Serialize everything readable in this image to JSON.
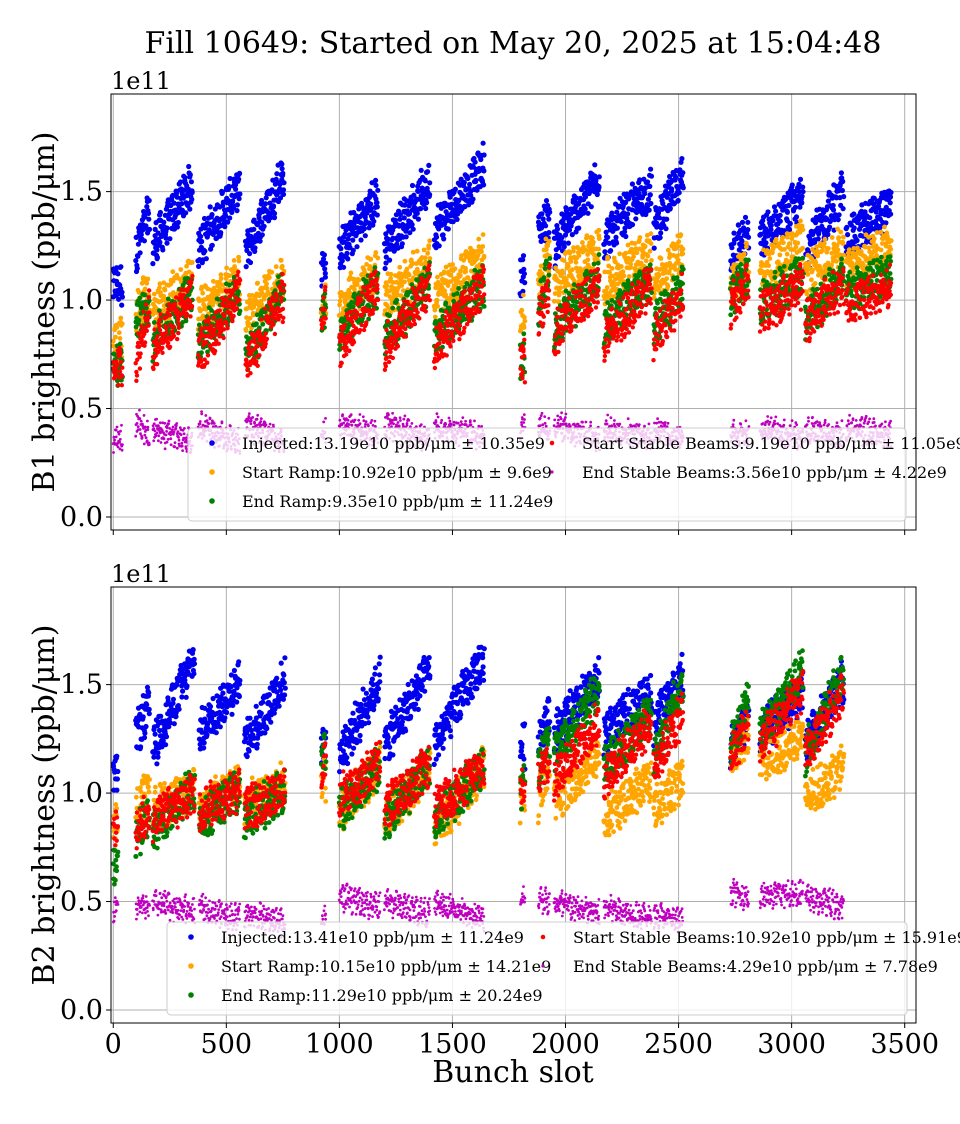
{
  "title": "Fill 10649: Started on May 20, 2025 at 15:04:48",
  "xlabel": "Bunch slot",
  "xticks": [
    "0",
    "500",
    "1000",
    "1500",
    "2000",
    "2500",
    "3000",
    "3500"
  ],
  "yticks": [
    "0.0",
    "0.5",
    "1.0",
    "1.5"
  ],
  "offset_label": "1e11",
  "colors": {
    "injected": "#0000ee",
    "start_ramp": "#ffa500",
    "end_ramp": "#008000",
    "start_stable": "#ff0000",
    "end_stable": "#c000c0",
    "grid": "#b0b0b0"
  },
  "chart_data": [
    {
      "type": "scatter",
      "name": "B1",
      "ylabel": "B1 brightness (ppb/μm)",
      "xlim": [
        -10,
        3550
      ],
      "ylim": [
        -0.06,
        1.95
      ],
      "y_multiplier": "1e11",
      "grid": true,
      "legend_position": "lower-right",
      "trains": [
        {
          "x": [
            0,
            40
          ],
          "inj": [
            1.05,
            1.05
          ],
          "sr": [
            0.78,
            0.8
          ],
          "er": [
            0.68,
            0.7
          ],
          "ssb": [
            0.65,
            0.7
          ],
          "esb": [
            0.33,
            0.33
          ]
        },
        {
          "x": [
            100,
            160
          ],
          "inj": [
            1.2,
            1.38
          ],
          "sr": [
            0.92,
            1.02
          ],
          "er": [
            0.88,
            0.95
          ],
          "ssb": [
            0.68,
            0.98
          ],
          "esb": [
            0.42,
            0.35
          ]
        },
        {
          "x": [
            175,
            350
          ],
          "inj": [
            1.22,
            1.52
          ],
          "sr": [
            0.92,
            1.08
          ],
          "er": [
            0.8,
            1.02
          ],
          "ssb": [
            0.75,
            1.0
          ],
          "esb": [
            0.38,
            0.32
          ]
        },
        {
          "x": [
            375,
            560
          ],
          "inj": [
            1.22,
            1.5
          ],
          "sr": [
            0.92,
            1.08
          ],
          "er": [
            0.78,
            1.02
          ],
          "ssb": [
            0.72,
            1.02
          ],
          "esb": [
            0.4,
            0.32
          ]
        },
        {
          "x": [
            585,
            755
          ],
          "inj": [
            1.2,
            1.56
          ],
          "sr": [
            0.9,
            1.08
          ],
          "er": [
            0.72,
            1.02
          ],
          "ssb": [
            0.68,
            1.0
          ],
          "esb": [
            0.4,
            0.32
          ]
        },
        {
          "x": [
            920,
            940
          ],
          "inj": [
            1.12,
            1.12
          ],
          "sr": [
            0.95,
            0.95
          ],
          "er": [
            0.92,
            0.92
          ],
          "ssb": [
            0.93,
            0.93
          ],
          "esb": [
            0.38,
            0.38
          ]
        },
        {
          "x": [
            1000,
            1170
          ],
          "inj": [
            1.2,
            1.45
          ],
          "sr": [
            0.95,
            1.12
          ],
          "er": [
            0.82,
            1.05
          ],
          "ssb": [
            0.75,
            1.05
          ],
          "esb": [
            0.4,
            0.36
          ]
        },
        {
          "x": [
            1200,
            1400
          ],
          "inj": [
            1.22,
            1.52
          ],
          "sr": [
            0.98,
            1.15
          ],
          "er": [
            0.82,
            1.05
          ],
          "ssb": [
            0.75,
            1.05
          ],
          "esb": [
            0.4,
            0.34
          ]
        },
        {
          "x": [
            1420,
            1640
          ],
          "inj": [
            1.3,
            1.6
          ],
          "sr": [
            0.98,
            1.18
          ],
          "er": [
            0.8,
            1.05
          ],
          "ssb": [
            0.75,
            1.05
          ],
          "esb": [
            0.4,
            0.34
          ]
        },
        {
          "x": [
            1800,
            1820
          ],
          "inj": [
            1.1,
            1.1
          ],
          "sr": [
            0.9,
            0.9
          ],
          "er": [
            0.72,
            0.72
          ],
          "ssb": [
            0.7,
            0.7
          ],
          "esb": [
            0.4,
            0.4
          ]
        },
        {
          "x": [
            1880,
            1930
          ],
          "inj": [
            1.3,
            1.36
          ],
          "sr": [
            1.05,
            1.2
          ],
          "er": [
            0.95,
            1.1
          ],
          "ssb": [
            0.9,
            1.05
          ],
          "esb": [
            0.4,
            0.38
          ]
        },
        {
          "x": [
            1950,
            2150
          ],
          "inj": [
            1.22,
            1.55
          ],
          "sr": [
            1.05,
            1.22
          ],
          "er": [
            0.85,
            1.08
          ],
          "ssb": [
            0.82,
            1.05
          ],
          "esb": [
            0.4,
            0.34
          ]
        },
        {
          "x": [
            2170,
            2380
          ],
          "inj": [
            1.25,
            1.5
          ],
          "sr": [
            1.05,
            1.2
          ],
          "er": [
            0.85,
            1.08
          ],
          "ssb": [
            0.8,
            1.05
          ],
          "esb": [
            0.38,
            0.34
          ]
        },
        {
          "x": [
            2390,
            2520
          ],
          "inj": [
            1.3,
            1.55
          ],
          "sr": [
            1.05,
            1.2
          ],
          "er": [
            0.85,
            1.05
          ],
          "ssb": [
            0.8,
            1.0
          ],
          "esb": [
            0.38,
            0.34
          ]
        },
        {
          "x": [
            2730,
            2810
          ],
          "inj": [
            1.2,
            1.28
          ],
          "sr": [
            1.05,
            1.15
          ],
          "er": [
            1.0,
            1.1
          ],
          "ssb": [
            0.95,
            1.05
          ],
          "esb": [
            0.38,
            0.36
          ]
        },
        {
          "x": [
            2860,
            3050
          ],
          "inj": [
            1.25,
            1.45
          ],
          "sr": [
            1.1,
            1.25
          ],
          "er": [
            0.95,
            1.1
          ],
          "ssb": [
            0.92,
            1.05
          ],
          "esb": [
            0.38,
            0.35
          ]
        },
        {
          "x": [
            3060,
            3230
          ],
          "inj": [
            1.2,
            1.48
          ],
          "sr": [
            1.08,
            1.22
          ],
          "er": [
            0.9,
            1.08
          ],
          "ssb": [
            0.88,
            1.05
          ],
          "esb": [
            0.38,
            0.35
          ]
        },
        {
          "x": [
            3240,
            3440
          ],
          "inj": [
            1.25,
            1.42
          ],
          "sr": [
            1.1,
            1.25
          ],
          "er": [
            1.0,
            1.1
          ],
          "ssb": [
            0.95,
            1.05
          ],
          "esb": [
            0.38,
            0.36
          ]
        }
      ],
      "legend": [
        {
          "key": "injected",
          "label": "Injected:13.19e10 ppb/μm ± 10.35e9"
        },
        {
          "key": "start_ramp",
          "label": "Start Ramp:10.92e10 ppb/μm ± 9.6e9"
        },
        {
          "key": "end_ramp",
          "label": "End Ramp:9.35e10 ppb/μm ± 11.24e9"
        },
        {
          "key": "start_stable",
          "label": "Start Stable Beams:9.19e10 ppb/μm ± 11.05e9"
        },
        {
          "key": "end_stable",
          "label": "End Stable Beams:3.56e10 ppb/μm ± 4.22e9"
        }
      ]
    },
    {
      "type": "scatter",
      "name": "B2",
      "ylabel": "B2 brightness (ppb/μm)",
      "xlim": [
        -10,
        3550
      ],
      "ylim": [
        -0.06,
        1.95
      ],
      "y_multiplier": "1e11",
      "grid": true,
      "legend_position": "lower-right",
      "trains": [
        {
          "x": [
            0,
            20
          ],
          "inj": [
            1.05,
            1.05
          ],
          "sr": [
            0.85,
            0.85
          ],
          "er": [
            0.65,
            0.65
          ],
          "ssb": [
            0.8,
            0.8
          ],
          "esb": [
            0.45,
            0.45
          ]
        },
        {
          "x": [
            100,
            160
          ],
          "inj": [
            1.25,
            1.38
          ],
          "sr": [
            0.9,
            1.0
          ],
          "er": [
            0.78,
            0.85
          ],
          "ssb": [
            0.8,
            0.9
          ],
          "esb": [
            0.45,
            0.45
          ]
        },
        {
          "x": [
            175,
            360
          ],
          "inj": [
            1.18,
            1.6
          ],
          "sr": [
            0.9,
            1.0
          ],
          "er": [
            0.8,
            1.0
          ],
          "ssb": [
            0.85,
            0.98
          ],
          "esb": [
            0.47,
            0.43
          ]
        },
        {
          "x": [
            380,
            560
          ],
          "inj": [
            1.25,
            1.5
          ],
          "sr": [
            0.92,
            1.02
          ],
          "er": [
            0.85,
            1.0
          ],
          "ssb": [
            0.9,
            1.0
          ],
          "esb": [
            0.45,
            0.4
          ]
        },
        {
          "x": [
            580,
            760
          ],
          "inj": [
            1.2,
            1.5
          ],
          "sr": [
            0.92,
            1.02
          ],
          "er": [
            0.85,
            1.0
          ],
          "ssb": [
            0.9,
            1.0
          ],
          "esb": [
            0.42,
            0.38
          ]
        },
        {
          "x": [
            920,
            940
          ],
          "inj": [
            1.2,
            1.2
          ],
          "sr": [
            1.05,
            1.05
          ],
          "er": [
            1.15,
            1.15
          ],
          "ssb": [
            1.1,
            1.1
          ],
          "esb": [
            0.4,
            0.4
          ]
        },
        {
          "x": [
            1000,
            1180
          ],
          "inj": [
            1.15,
            1.5
          ],
          "sr": [
            0.9,
            1.1
          ],
          "er": [
            0.9,
            1.1
          ],
          "ssb": [
            0.95,
            1.12
          ],
          "esb": [
            0.5,
            0.45
          ]
        },
        {
          "x": [
            1200,
            1400
          ],
          "inj": [
            1.2,
            1.55
          ],
          "sr": [
            0.85,
            1.1
          ],
          "er": [
            0.85,
            1.1
          ],
          "ssb": [
            0.9,
            1.1
          ],
          "esb": [
            0.48,
            0.42
          ]
        },
        {
          "x": [
            1420,
            1640
          ],
          "inj": [
            1.2,
            1.6
          ],
          "sr": [
            0.8,
            1.1
          ],
          "er": [
            0.85,
            1.1
          ],
          "ssb": [
            0.9,
            1.1
          ],
          "esb": [
            0.47,
            0.4
          ]
        },
        {
          "x": [
            1800,
            1820
          ],
          "inj": [
            1.2,
            1.2
          ],
          "sr": [
            0.95,
            0.95
          ],
          "er": [
            1.0,
            1.0
          ],
          "ssb": [
            1.0,
            1.0
          ],
          "esb": [
            0.5,
            0.5
          ]
        },
        {
          "x": [
            1880,
            1930
          ],
          "inj": [
            1.25,
            1.35
          ],
          "sr": [
            0.95,
            1.1
          ],
          "er": [
            1.1,
            1.2
          ],
          "ssb": [
            1.05,
            1.15
          ],
          "esb": [
            0.5,
            0.47
          ]
        },
        {
          "x": [
            1950,
            2150
          ],
          "inj": [
            1.25,
            1.5
          ],
          "sr": [
            0.95,
            1.15
          ],
          "er": [
            1.15,
            1.45
          ],
          "ssb": [
            1.05,
            1.3
          ],
          "esb": [
            0.47,
            0.42
          ]
        },
        {
          "x": [
            2170,
            2380
          ],
          "inj": [
            1.25,
            1.45
          ],
          "sr": [
            0.85,
            1.05
          ],
          "er": [
            1.1,
            1.35
          ],
          "ssb": [
            1.05,
            1.3
          ],
          "esb": [
            0.45,
            0.4
          ]
        },
        {
          "x": [
            2390,
            2520
          ],
          "inj": [
            1.3,
            1.52
          ],
          "sr": [
            0.9,
            1.05
          ],
          "er": [
            1.15,
            1.5
          ],
          "ssb": [
            1.1,
            1.35
          ],
          "esb": [
            0.42,
            0.38
          ]
        },
        {
          "x": [
            2730,
            2810
          ],
          "inj": [
            1.2,
            1.3
          ],
          "sr": [
            1.15,
            1.25
          ],
          "er": [
            1.2,
            1.4
          ],
          "ssb": [
            1.15,
            1.3
          ],
          "esb": [
            0.52,
            0.5
          ]
        },
        {
          "x": [
            2860,
            3050
          ],
          "inj": [
            1.25,
            1.45
          ],
          "sr": [
            1.1,
            1.25
          ],
          "er": [
            1.25,
            1.55
          ],
          "ssb": [
            1.2,
            1.45
          ],
          "esb": [
            0.5,
            0.52
          ]
        },
        {
          "x": [
            3060,
            3230
          ],
          "inj": [
            1.2,
            1.5
          ],
          "sr": [
            0.95,
            1.1
          ],
          "er": [
            1.15,
            1.55
          ],
          "ssb": [
            1.15,
            1.45
          ],
          "esb": [
            0.5,
            0.45
          ]
        }
      ],
      "legend": [
        {
          "key": "injected",
          "label": "Injected:13.41e10 ppb/μm ± 11.24e9"
        },
        {
          "key": "start_ramp",
          "label": "Start Ramp:10.15e10 ppb/μm ± 14.21e9"
        },
        {
          "key": "end_ramp",
          "label": "End Ramp:11.29e10 ppb/μm ± 20.24e9"
        },
        {
          "key": "start_stable",
          "label": "Start Stable Beams:10.92e10 ppb/μm ± 15.91e9"
        },
        {
          "key": "end_stable",
          "label": "End Stable Beams:4.29e10 ppb/μm ± 7.78e9"
        }
      ]
    }
  ]
}
